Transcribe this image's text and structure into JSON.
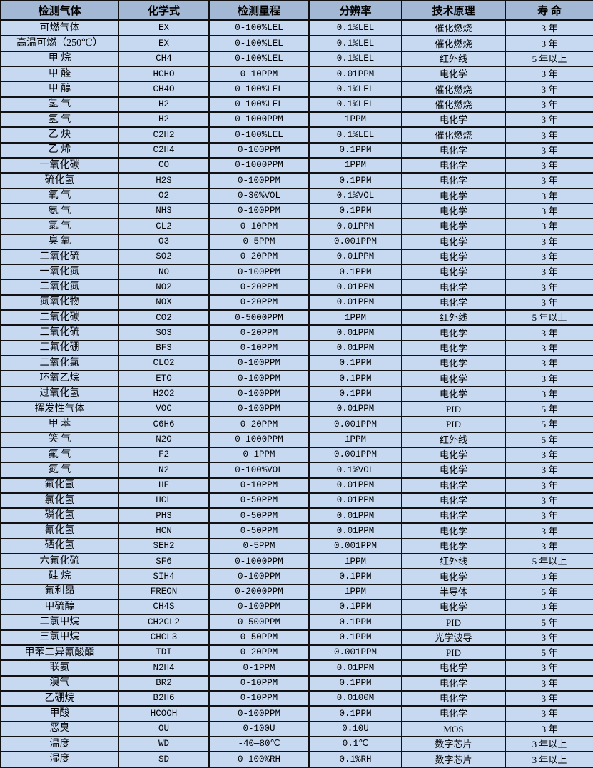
{
  "table": {
    "columns": [
      {
        "key": "gas",
        "label": "检测气体"
      },
      {
        "key": "formula",
        "label": "化学式"
      },
      {
        "key": "range",
        "label": "检测量程"
      },
      {
        "key": "resolution",
        "label": "分辨率"
      },
      {
        "key": "principle",
        "label": "技术原理"
      },
      {
        "key": "lifespan",
        "label": "寿 命"
      }
    ],
    "rows": [
      [
        "可燃气体",
        "EX",
        "0-100%LEL",
        "0.1%LEL",
        "催化燃烧",
        "3 年"
      ],
      [
        "高温可燃（250℃）",
        "EX",
        "0-100%LEL",
        "0.1%LEL",
        "催化燃烧",
        "3 年"
      ],
      [
        "甲 烷",
        "CH4",
        "0-100%LEL",
        "0.1%LEL",
        "红外线",
        "5 年以上"
      ],
      [
        "甲 醛",
        "HCHO",
        "0-10PPM",
        "0.01PPM",
        "电化学",
        "3 年"
      ],
      [
        "甲 醇",
        "CH4O",
        "0-100%LEL",
        "0.1%LEL",
        "催化燃烧",
        "3 年"
      ],
      [
        "氢 气",
        "H2",
        "0-100%LEL",
        "0.1%LEL",
        "催化燃烧",
        "3 年"
      ],
      [
        "氢 气",
        "H2",
        "0-1000PPM",
        "1PPM",
        "电化学",
        "3 年"
      ],
      [
        "乙 炔",
        "C2H2",
        "0-100%LEL",
        "0.1%LEL",
        "催化燃烧",
        "3 年"
      ],
      [
        "乙 烯",
        "C2H4",
        "0-100PPM",
        "0.1PPM",
        "电化学",
        "3 年"
      ],
      [
        "一氧化碳",
        "CO",
        "0-1000PPM",
        "1PPM",
        "电化学",
        "3 年"
      ],
      [
        "硫化氢",
        "H2S",
        "0-100PPM",
        "0.1PPM",
        "电化学",
        "3 年"
      ],
      [
        "氧 气",
        "O2",
        "0-30%VOL",
        "0.1%VOL",
        "电化学",
        "3 年"
      ],
      [
        "氨 气",
        "NH3",
        "0-100PPM",
        "0.1PPM",
        "电化学",
        "3 年"
      ],
      [
        "氯 气",
        "CL2",
        "0-10PPM",
        "0.01PPM",
        "电化学",
        "3 年"
      ],
      [
        "臭 氧",
        "O3",
        "0-5PPM",
        "0.001PPM",
        "电化学",
        "3 年"
      ],
      [
        "二氧化硫",
        "SO2",
        "0-20PPM",
        "0.01PPM",
        "电化学",
        "3 年"
      ],
      [
        "一氧化氮",
        "NO",
        "0-100PPM",
        "0.1PPM",
        "电化学",
        "3 年"
      ],
      [
        "二氧化氮",
        "NO2",
        "0-20PPM",
        "0.01PPM",
        "电化学",
        "3 年"
      ],
      [
        "氮氧化物",
        "NOX",
        "0-20PPM",
        "0.01PPM",
        "电化学",
        "3 年"
      ],
      [
        "二氧化碳",
        "CO2",
        "0-5000PPM",
        "1PPM",
        "红外线",
        "5 年以上"
      ],
      [
        "三氧化硫",
        "SO3",
        "0-20PPM",
        "0.01PPM",
        "电化学",
        "3 年"
      ],
      [
        "三氟化硼",
        "BF3",
        "0-10PPM",
        "0.01PPM",
        "电化学",
        "3 年"
      ],
      [
        "二氧化氯",
        "CLO2",
        "0-100PPM",
        "0.1PPM",
        "电化学",
        "3 年"
      ],
      [
        "环氧乙烷",
        "ETO",
        "0-100PPM",
        "0.1PPM",
        "电化学",
        "3 年"
      ],
      [
        "过氧化氢",
        "H2O2",
        "0-100PPM",
        "0.1PPM",
        "电化学",
        "3 年"
      ],
      [
        "挥发性气体",
        "VOC",
        "0-100PPM",
        "0.01PPM",
        "PID",
        "5 年"
      ],
      [
        "甲 苯",
        "C6H6",
        "0-20PPM",
        "0.001PPM",
        "PID",
        "5 年"
      ],
      [
        "笑 气",
        "N2O",
        "0-1000PPM",
        "1PPM",
        "红外线",
        "5 年"
      ],
      [
        "氟 气",
        "F2",
        "0-1PPM",
        "0.001PPM",
        "电化学",
        "3 年"
      ],
      [
        "氮 气",
        "N2",
        "0-100%VOL",
        "0.1%VOL",
        "电化学",
        "3 年"
      ],
      [
        "氟化氢",
        "HF",
        "0-10PPM",
        "0.01PPM",
        "电化学",
        "3 年"
      ],
      [
        "氯化氢",
        "HCL",
        "0-50PPM",
        "0.01PPM",
        "电化学",
        "3 年"
      ],
      [
        "磷化氢",
        "PH3",
        "0-50PPM",
        "0.01PPM",
        "电化学",
        "3 年"
      ],
      [
        "氰化氢",
        "HCN",
        "0-50PPM",
        "0.01PPM",
        "电化学",
        "3 年"
      ],
      [
        "硒化氢",
        "SEH2",
        "0-5PPM",
        "0.001PPM",
        "电化学",
        "3 年"
      ],
      [
        "六氟化硫",
        "SF6",
        "0-1000PPM",
        "1PPM",
        "红外线",
        "5 年以上"
      ],
      [
        "硅 烷",
        "SIH4",
        "0-100PPM",
        "0.1PPM",
        "电化学",
        "3 年"
      ],
      [
        "氟利昂",
        "FREON",
        "0-2000PPM",
        "1PPM",
        "半导体",
        "5 年"
      ],
      [
        "甲硫醇",
        "CH4S",
        "0-100PPM",
        "0.1PPM",
        "电化学",
        "3 年"
      ],
      [
        "二氯甲烷",
        "CH2CL2",
        "0-500PPM",
        "0.1PPM",
        "PID",
        "5 年"
      ],
      [
        "三氯甲烷",
        "CHCL3",
        "0-50PPM",
        "0.1PPM",
        "光学波导",
        "3 年"
      ],
      [
        "甲苯二异氰酸酯",
        "TDI",
        "0-20PPM",
        "0.001PPM",
        "PID",
        "5 年"
      ],
      [
        "联氨",
        "N2H4",
        "0-1PPM",
        "0.01PPM",
        "电化学",
        "3 年"
      ],
      [
        "溴气",
        "BR2",
        "0-10PPM",
        "0.1PPM",
        "电化学",
        "3 年"
      ],
      [
        "乙硼烷",
        "B2H6",
        "0-10PPM",
        "0.0100M",
        "电化学",
        "3 年"
      ],
      [
        "甲酸",
        "HCOOH",
        "0-100PPM",
        "0.1PPM",
        "电化学",
        "3 年"
      ],
      [
        "恶臭",
        "OU",
        "0-100U",
        "0.10U",
        "MOS",
        "3 年"
      ],
      [
        "温度",
        "WD",
        "-40—80℃",
        "0.1℃",
        "数字芯片",
        "3 年以上"
      ],
      [
        "湿度",
        "SD",
        "0-100%RH",
        "0.1%RH",
        "数字芯片",
        "3 年以上"
      ]
    ],
    "colors": {
      "header_bg": "#a3b8d4",
      "row_bg": "#c6d9f0",
      "border": "#121212",
      "text": "#000000"
    }
  }
}
